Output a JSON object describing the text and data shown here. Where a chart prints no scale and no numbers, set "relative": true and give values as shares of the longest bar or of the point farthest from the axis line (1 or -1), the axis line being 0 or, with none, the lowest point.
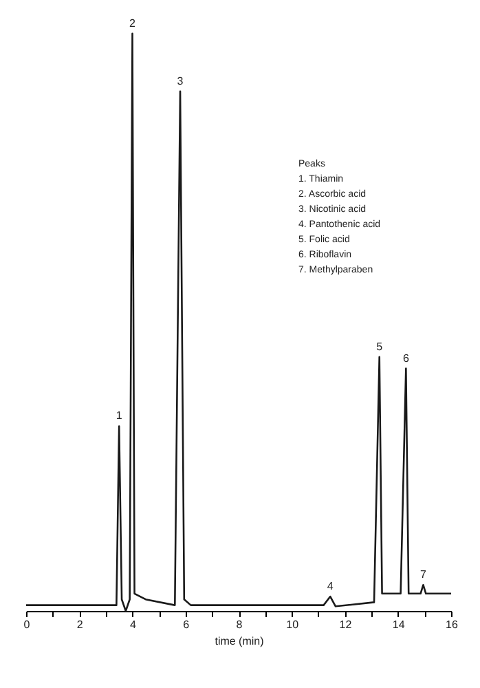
{
  "chart_data": {
    "type": "line",
    "relative": true,
    "xlabel": "time (min)",
    "x": [
      0,
      3.4,
      3.5,
      3.6,
      3.75,
      3.9,
      4.0,
      4.08,
      4.5,
      5.6,
      5.8,
      5.95,
      6.2,
      11.2,
      11.45,
      11.65,
      13.1,
      13.3,
      13.4,
      14.1,
      14.3,
      14.4,
      14.85,
      14.95,
      15.05,
      16
    ],
    "series": [
      {
        "color": "#1a1a1a",
        "values": [
          0.01,
          0.01,
          0.32,
          0.02,
          0.0,
          0.02,
          1,
          0.03,
          0.02,
          0.01,
          0.9,
          0.02,
          0.01,
          0.01,
          0.025,
          0.008,
          0.015,
          0.44,
          0.03,
          0.03,
          0.42,
          0.03,
          0.03,
          0.045,
          0.03,
          0.03
        ]
      }
    ],
    "xlim": [
      0,
      16
    ],
    "xticks": [
      0,
      {
        "value": 1,
        "label": null
      },
      2,
      {
        "value": 3,
        "label": null
      },
      4,
      {
        "value": 5,
        "label": null
      },
      6,
      {
        "value": 7,
        "label": null
      },
      8,
      {
        "value": 9,
        "label": null
      },
      10,
      {
        "value": 11,
        "label": null
      },
      12,
      {
        "value": 13,
        "label": null
      },
      14,
      {
        "value": 15,
        "label": null
      },
      16
    ],
    "marker": "none",
    "annotations": [
      {
        "text": "1",
        "x": 3.5,
        "y": 0.32
      },
      {
        "text": "2",
        "x": 4.0,
        "y": 1
      },
      {
        "text": "3",
        "x": 5.8,
        "y": 0.9
      },
      {
        "text": "4",
        "x": 11.45,
        "y": 0.025
      },
      {
        "text": "5",
        "x": 13.3,
        "y": 0.44
      },
      {
        "text": "6",
        "x": 14.3,
        "y": 0.42
      },
      {
        "text": "7",
        "x": 14.95,
        "y": 0.045
      },
      "Peaks",
      "1. Thiamin",
      "2. Ascorbic acid",
      "3. Nicotinic acid",
      "4. Pantothenic acid",
      "5. Folic acid",
      "6. Riboflavin",
      "7. Methylparaben"
    ]
  }
}
